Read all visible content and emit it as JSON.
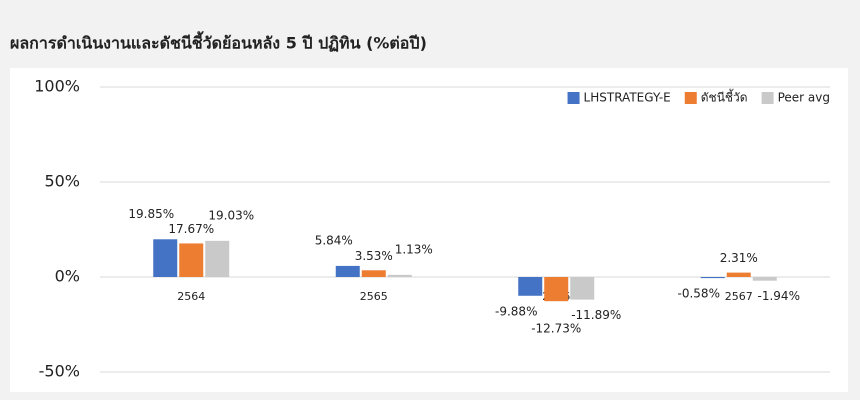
{
  "chart_data": {
    "type": "bar",
    "title": "ผลการดำเนินงานและดัชนีชี้วัดย้อนหลัง 5 ปี ปฏิทิน (%ต่อปี)",
    "categories": [
      "2564",
      "2565",
      "2566",
      "2567"
    ],
    "series": [
      {
        "name": "LHSTRATEGY-E",
        "color": "#4472c4",
        "values": [
          19.85,
          5.84,
          -9.88,
          -0.58
        ],
        "value_labels": [
          "19.85%",
          "5.84%",
          "-9.88%",
          "-0.58%"
        ]
      },
      {
        "name": "ดัชนีชี้วัด",
        "color": "#ed7d31",
        "values": [
          17.67,
          3.53,
          -12.73,
          2.31
        ],
        "value_labels": [
          "17.67%",
          "3.53%",
          "-12.73%",
          "2.31%"
        ]
      },
      {
        "name": "Peer avg",
        "color": "#c9c9c9",
        "values": [
          19.03,
          1.13,
          -11.89,
          -1.94
        ],
        "value_labels": [
          "19.03%",
          "1.13%",
          "-11.89%",
          "-1.94%"
        ]
      }
    ],
    "ylim": [
      -50,
      100
    ],
    "yticks": [
      {
        "value": -50,
        "label": "-50%"
      },
      {
        "value": 0,
        "label": "0%"
      },
      {
        "value": 50,
        "label": "50%"
      },
      {
        "value": 100,
        "label": "100%"
      }
    ],
    "grid": true,
    "legend": "top-right"
  }
}
